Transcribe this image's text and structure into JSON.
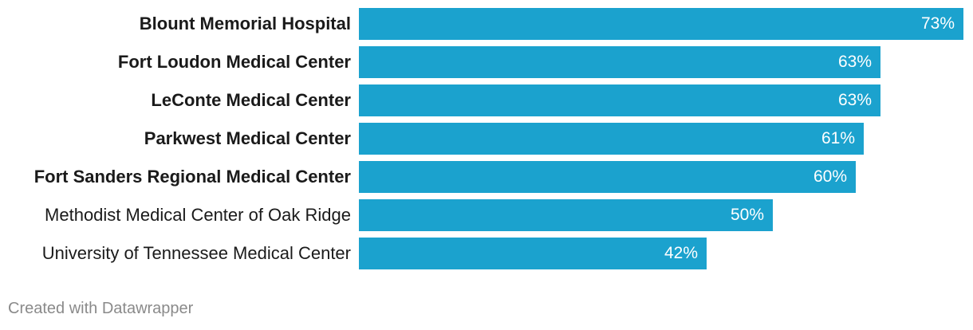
{
  "chart_data": {
    "type": "bar",
    "orientation": "horizontal",
    "categories": [
      "Blount Memorial Hospital",
      "Fort Loudon Medical Center",
      "LeConte Medical Center",
      "Parkwest Medical Center",
      "Fort Sanders Regional Medical Center",
      "Methodist Medical Center of Oak Ridge",
      "University of Tennessee Medical Center"
    ],
    "values": [
      73,
      63,
      63,
      61,
      60,
      50,
      42
    ],
    "value_labels": [
      "73%",
      "63%",
      "63%",
      "61%",
      "60%",
      "50%",
      "42%"
    ],
    "bold_labels": [
      true,
      true,
      true,
      true,
      true,
      false,
      false
    ],
    "xlim": [
      0,
      73
    ],
    "bar_color": "#1ba2ce",
    "grid": false,
    "legend": "none"
  },
  "footer": {
    "credit": "Created with Datawrapper"
  }
}
